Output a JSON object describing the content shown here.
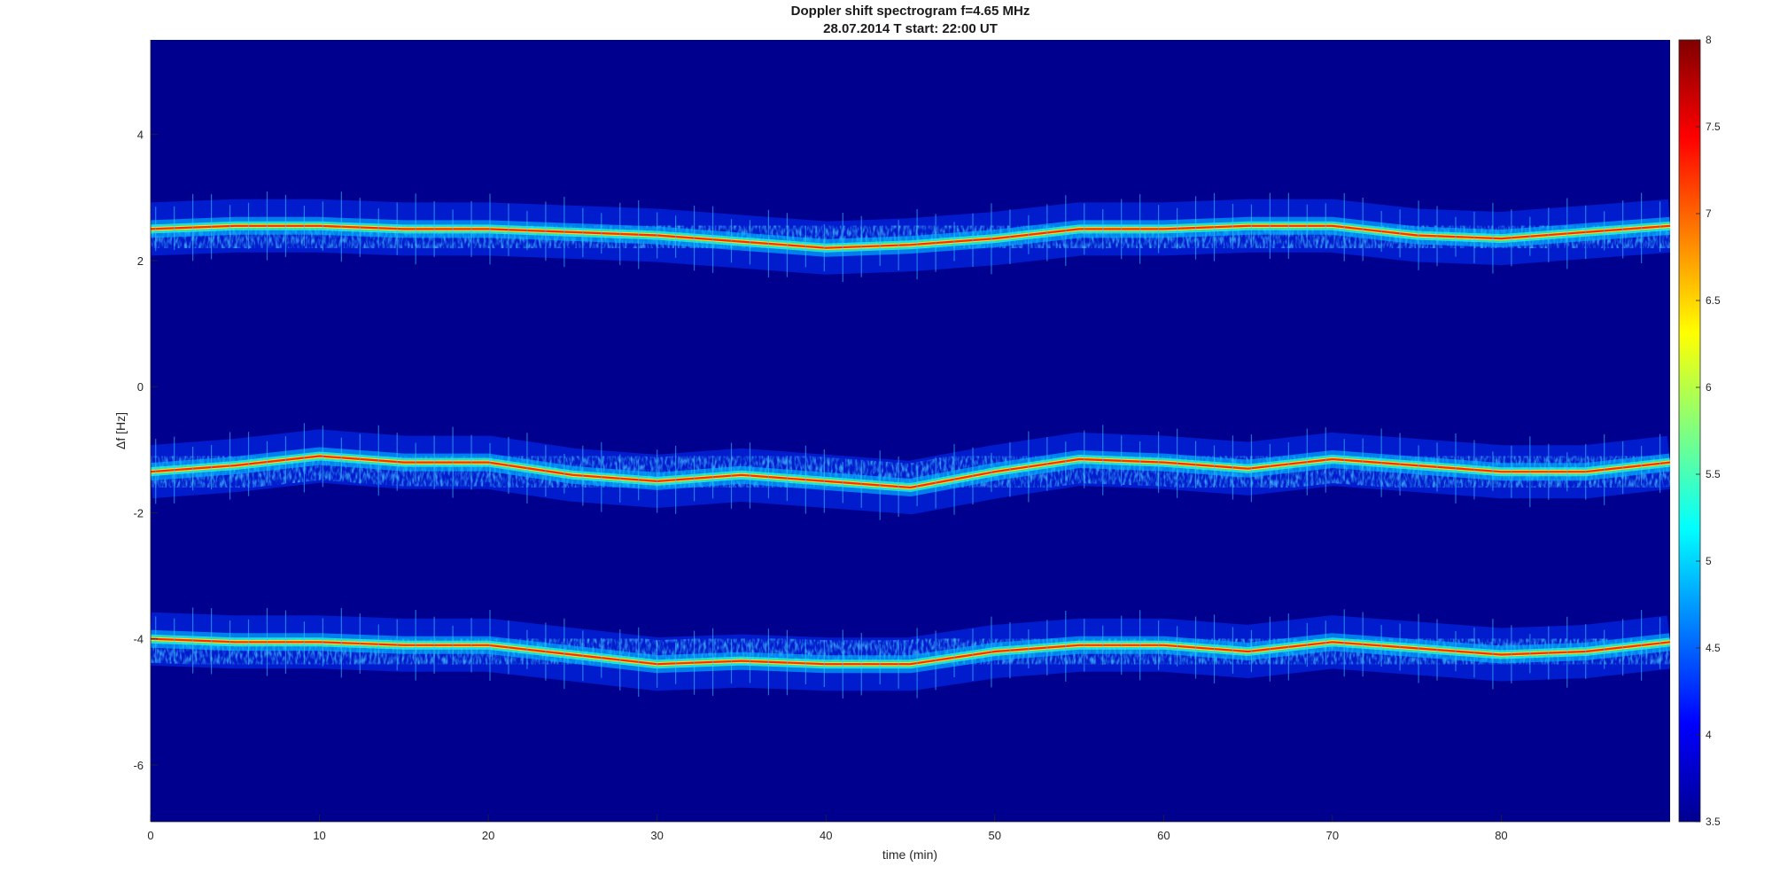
{
  "chart_data": {
    "type": "heatmap",
    "title": "Doppler shift spectrogram f=4.65 MHz",
    "subtitle": "28.07.2014   T start: 22:00 UT",
    "xlabel": "time (min)",
    "ylabel": "Δf [Hz]",
    "xlim": [
      0,
      90
    ],
    "ylim": [
      -6.9,
      5.5
    ],
    "xticks": [
      0,
      10,
      20,
      30,
      40,
      50,
      60,
      70,
      80
    ],
    "yticks": [
      -6,
      -4,
      -2,
      0,
      2,
      4
    ],
    "grid": false,
    "colorbar": {
      "colormap": "jet",
      "clim": [
        3.5,
        8
      ],
      "ticks": [
        3.5,
        4,
        4.5,
        5,
        5.5,
        6,
        6.5,
        7,
        7.5,
        8
      ],
      "tick_labels": [
        "3.5",
        "4",
        "4.5",
        "5",
        "5.5",
        "6",
        "6.5",
        "7",
        "7.5",
        "8"
      ],
      "background": "#00008f"
    },
    "series": [
      {
        "time_min": [
          0,
          5,
          10,
          15,
          20,
          25,
          30,
          35,
          40,
          45,
          50,
          55,
          60,
          65,
          70,
          75,
          80,
          85,
          90
        ],
        "doppler_hz": [
          2.5,
          2.55,
          2.55,
          2.5,
          2.5,
          2.45,
          2.4,
          2.3,
          2.2,
          2.25,
          2.35,
          2.5,
          2.5,
          2.55,
          2.55,
          2.4,
          2.35,
          2.45,
          2.55
        ]
      },
      {
        "time_min": [
          0,
          5,
          10,
          15,
          20,
          25,
          30,
          35,
          40,
          45,
          50,
          55,
          60,
          65,
          70,
          75,
          80,
          85,
          90
        ],
        "doppler_hz": [
          -1.35,
          -1.25,
          -1.1,
          -1.2,
          -1.2,
          -1.4,
          -1.5,
          -1.4,
          -1.5,
          -1.6,
          -1.35,
          -1.15,
          -1.2,
          -1.3,
          -1.15,
          -1.25,
          -1.35,
          -1.35,
          -1.2
        ]
      },
      {
        "time_min": [
          0,
          5,
          10,
          15,
          20,
          25,
          30,
          35,
          40,
          45,
          50,
          55,
          60,
          65,
          70,
          75,
          80,
          85,
          90
        ],
        "doppler_hz": [
          -4.0,
          -4.05,
          -4.05,
          -4.1,
          -4.1,
          -4.25,
          -4.4,
          -4.35,
          -4.4,
          -4.4,
          -4.2,
          -4.1,
          -4.1,
          -4.2,
          -4.05,
          -4.15,
          -4.25,
          -4.2,
          -4.05
        ]
      }
    ]
  }
}
